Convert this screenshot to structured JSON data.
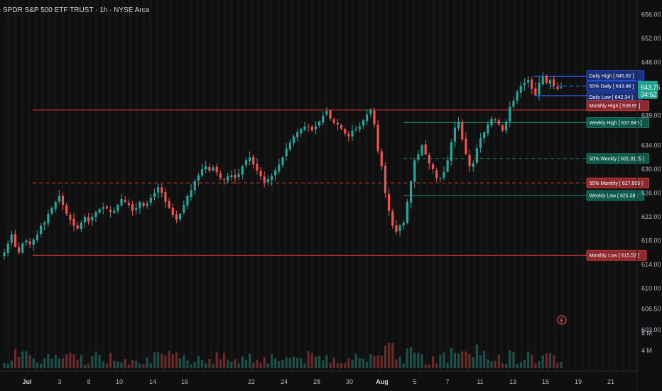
{
  "header": {
    "title": "SPDR S&P 500 ETF TRUST · 1h · NYSE Arca"
  },
  "colors": {
    "up": "#26a69a",
    "down": "#ef5350",
    "red_line": "#e53935",
    "green_line": "#1b8f74",
    "blue_line": "#2962ff",
    "bg": "#0f0f0f"
  },
  "price_axis": {
    "ticks": [
      "656.00",
      "652.00",
      "648.00",
      "643.75",
      "639.00",
      "634.00",
      "630.00",
      "626.00",
      "622.00",
      "618.00",
      "614.00",
      "610.00",
      "606.50",
      "603.00"
    ],
    "range": [
      603,
      657
    ]
  },
  "volume_axis": {
    "ticks": [
      "8 M",
      "4 M"
    ]
  },
  "last_price": {
    "value": "643.75",
    "countdown": "34:52",
    "price": 643.75
  },
  "time_axis": {
    "labels": [
      "Jul",
      "3",
      "8",
      "10",
      "14",
      "16",
      "22",
      "24",
      "28",
      "30",
      "Aug",
      "5",
      "7",
      "11",
      "13",
      "15",
      "19",
      "21"
    ]
  },
  "levels": [
    {
      "name": "Daily High",
      "label": "Daily High [ 645.62 ]",
      "price": 645.62,
      "style": "solid",
      "color": "blue",
      "start": "Aug 14"
    },
    {
      "name": "50% Daily",
      "label": "50% Daily [ 643.98 ]",
      "price": 643.98,
      "style": "dashed",
      "color": "blue",
      "start": "Aug 15"
    },
    {
      "name": "Daily Low",
      "label": "Daily Low [ 642.34 ]",
      "price": 642.34,
      "style": "solid",
      "color": "blue",
      "start": "Aug 14"
    },
    {
      "name": "Monthly High",
      "label": "Monthly High [ 639.95 ]",
      "price": 639.95,
      "style": "solid",
      "color": "red",
      "start": "Jul 1"
    },
    {
      "name": "Weekly High",
      "label": "Weekly High [ 637.845 ]",
      "price": 637.845,
      "style": "solid",
      "color": "green",
      "start": "Aug 6"
    },
    {
      "name": "50% Weekly",
      "label": "50% Weekly [ 631.8125 ]",
      "price": 631.8125,
      "style": "dashed",
      "color": "green",
      "start": "Aug 6"
    },
    {
      "name": "50% Monthly",
      "label": "50% Monthly [ 627.695 ]",
      "price": 627.695,
      "style": "dashed",
      "color": "red",
      "start": "Jul 1"
    },
    {
      "name": "Weekly Low",
      "label": "Weekly Low [ 625.58 ]",
      "price": 625.58,
      "style": "solid",
      "color": "green",
      "start": "Aug 6"
    },
    {
      "name": "Monthly Low",
      "label": "Monthly Low [ 615.52 ]",
      "price": 615.52,
      "style": "solid",
      "color": "red",
      "start": "Jul 1"
    }
  ],
  "chart_data": {
    "type": "candlestick",
    "title": "SPDR S&P 500 ETF TRUST · 1h · NYSE Arca",
    "series": [
      {
        "name": "close",
        "values": [
          616,
          617.5,
          619,
          617,
          616,
          617.5,
          618,
          617.4,
          618.2,
          619,
          620.5,
          621,
          622.5,
          623.5,
          624.5,
          625.5,
          624,
          622.5,
          621.5,
          620.5,
          620,
          621,
          622,
          621.2,
          622,
          622.8,
          623.3,
          623.6,
          623.4,
          622.8,
          623,
          624,
          625,
          624.5,
          624,
          623,
          623.5,
          624.5,
          623.8,
          624.2,
          625.2,
          626,
          627,
          626,
          624.5,
          623.5,
          622.3,
          621.5,
          622.5,
          624,
          625.5,
          626.5,
          628,
          629,
          630,
          630.5,
          629.8,
          630.3,
          629.5,
          628.5,
          628.2,
          628.8,
          629,
          628.5,
          629.2,
          630.5,
          631.5,
          632,
          630.8,
          629.8,
          628.8,
          627.8,
          628.3,
          628.8,
          629.8,
          630.8,
          632,
          633.5,
          634.5,
          635.5,
          636.2,
          636.8,
          637.2,
          637,
          636.5,
          637.2,
          638,
          639,
          639.8,
          638.5,
          637.8,
          637.5,
          636.8,
          636,
          635.5,
          636.5,
          636.8,
          637.2,
          638.2,
          639.2,
          640,
          637.5,
          633,
          630.5,
          626,
          623,
          620.5,
          619.5,
          620.5,
          621,
          624.5,
          628,
          631.5,
          632.5,
          634,
          632.5,
          631,
          630,
          628.5,
          628.5,
          629.5,
          631.5,
          634.5,
          637,
          638,
          635,
          632.5,
          630.5,
          631,
          633.5,
          635.2,
          636.2,
          637.5,
          638.5,
          638.2,
          637.5,
          636.5,
          638,
          640.5,
          641.5,
          643,
          644,
          644.5,
          645,
          643.5,
          642.5,
          644.5,
          645.5,
          644.5,
          645,
          644,
          643.5,
          643.8
        ]
      }
    ],
    "start_date": "Jul 1",
    "ylim": [
      603,
      657
    ],
    "volume_ylim": [
      0,
      9
    ]
  }
}
